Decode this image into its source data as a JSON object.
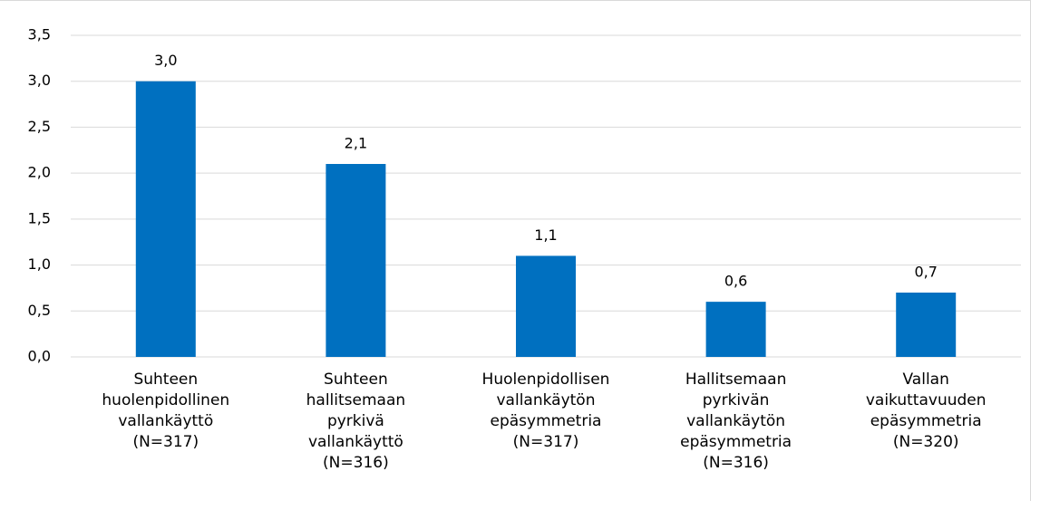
{
  "chart_data": {
    "type": "bar",
    "categories": [
      "Suhteen huolenpidollinen vallankäyttö (N=317)",
      "Suhteen hallitsemaan pyrkivä vallankäyttö (N=316)",
      "Huolenpidollisen vallankäytön epäsymmetria (N=317)",
      "Hallitsemaan pyrkivän vallankäytön epäsymmetria (N=316)",
      "Vallan vaikuttavuuden epäsymmetria (N=320)"
    ],
    "values": [
      3.0,
      2.1,
      1.1,
      0.6,
      0.7
    ],
    "value_labels": [
      "3,0",
      "2,1",
      "1,1",
      "0,6",
      "0,7"
    ],
    "color": "#0070c0",
    "ylim": [
      0,
      3.5
    ],
    "yticks": [
      {
        "value": 0,
        "label": "0,0"
      },
      {
        "value": 0.5,
        "label": "0,5"
      },
      {
        "value": 1,
        "label": "1,0"
      },
      {
        "value": 1.5,
        "label": "1,5"
      },
      {
        "value": 2,
        "label": "2,0"
      },
      {
        "value": 2.5,
        "label": "2,5"
      },
      {
        "value": 3,
        "label": "3,0"
      },
      {
        "value": 3.5,
        "label": "3,5"
      }
    ],
    "grid": true
  }
}
